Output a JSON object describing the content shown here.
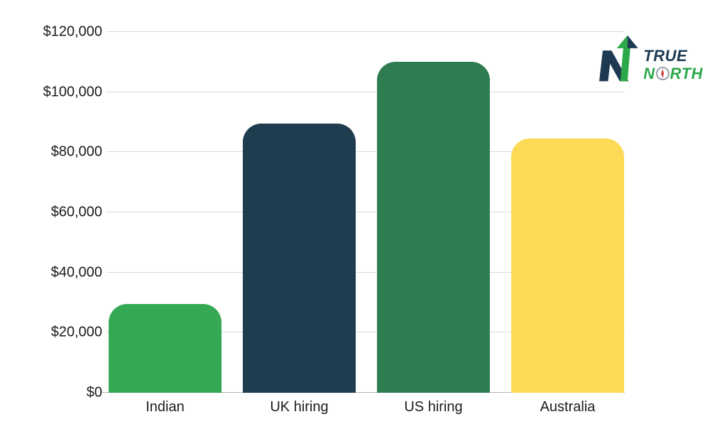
{
  "page": {
    "background": "#ffffff"
  },
  "logo": {
    "name": "True North",
    "line1": "TRUE",
    "line2_prefix": "N",
    "line2_suffix": "RTH",
    "navy": "#1d3a52",
    "green": "#2ba84a",
    "compass_needle_red": "#d43d3d"
  },
  "chart_data": {
    "type": "bar",
    "title": "",
    "xlabel": "",
    "ylabel": "",
    "categories": [
      "Indian",
      "UK hiring",
      "US hiring",
      "Australia"
    ],
    "values": [
      29500,
      89500,
      110000,
      84500
    ],
    "bar_colors": [
      "#35a853",
      "#1e3d4e",
      "#2d7d51",
      "#fdda55"
    ],
    "ylim": [
      0,
      120000
    ],
    "yticks": [
      {
        "value": 0,
        "label": "$0"
      },
      {
        "value": 20000,
        "label": "$20,000"
      },
      {
        "value": 40000,
        "label": "$40,000"
      },
      {
        "value": 60000,
        "label": "$60,000"
      },
      {
        "value": 80000,
        "label": "$80,000"
      },
      {
        "value": 100000,
        "label": "$100,000"
      },
      {
        "value": 120000,
        "label": "$120,000"
      }
    ],
    "grid": true,
    "gridline_color": "#d9d9d9",
    "baseline_color": "#b3b3b3",
    "legend": "none"
  }
}
